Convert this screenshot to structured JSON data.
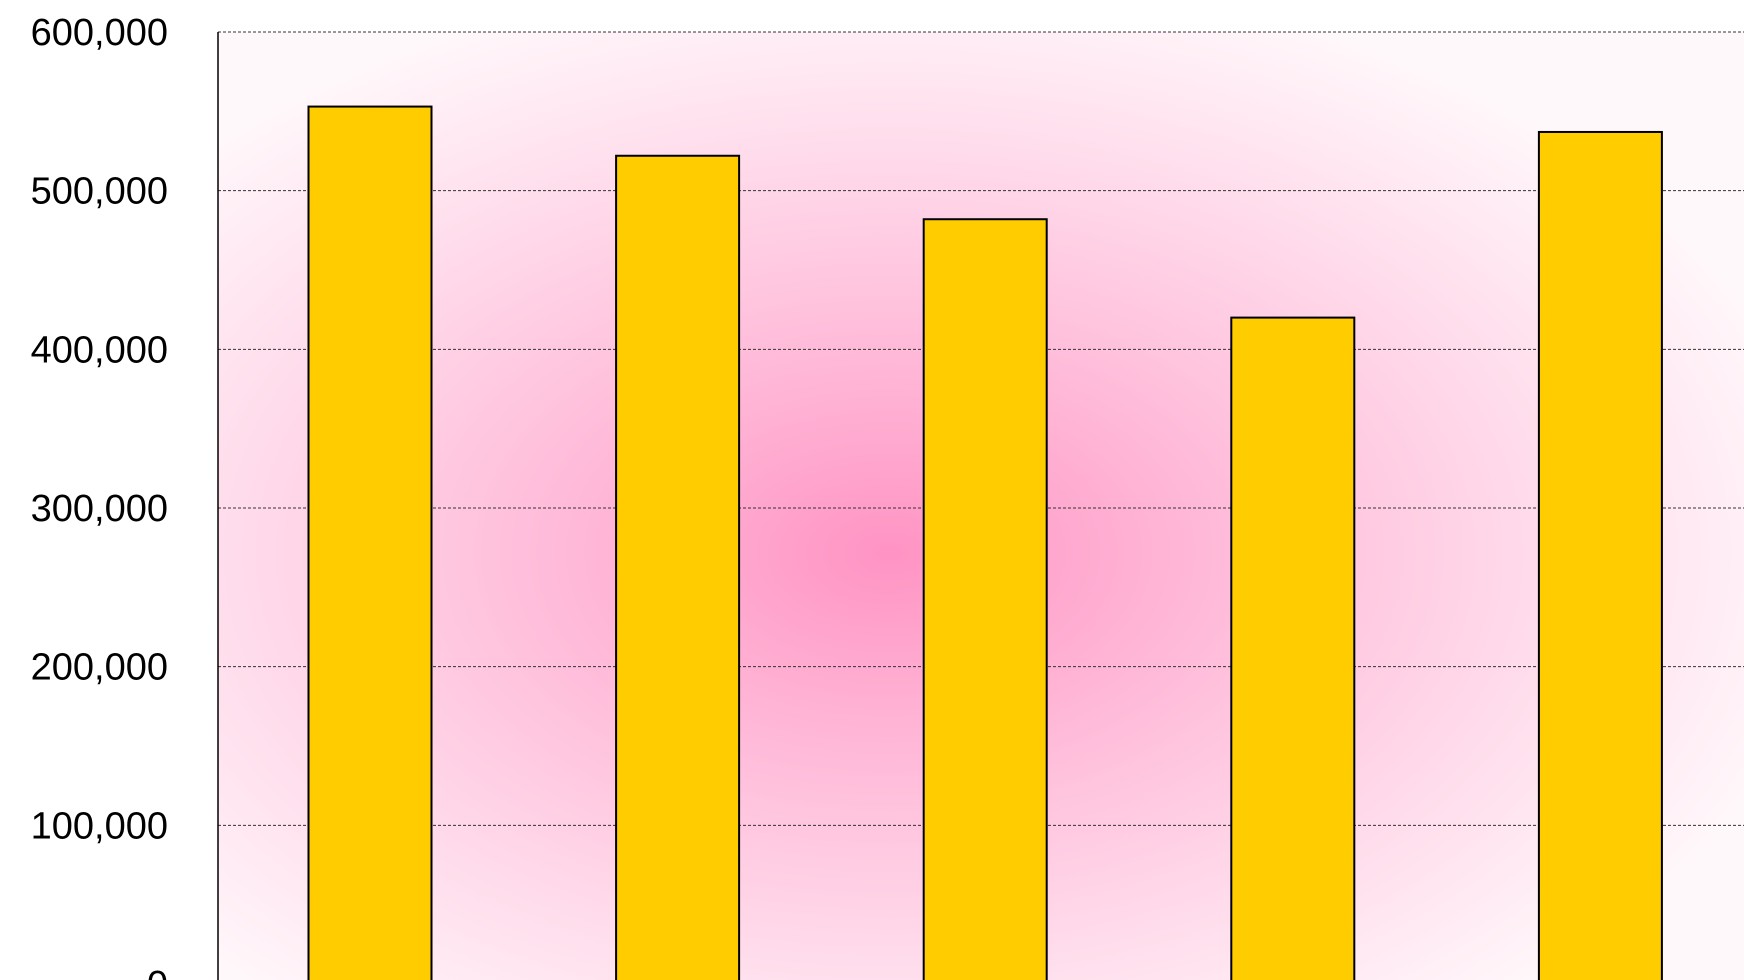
{
  "chart_data": {
    "type": "bar",
    "categories": [
      "",
      "",
      "",
      "",
      ""
    ],
    "values": [
      553000,
      522000,
      482000,
      420000,
      537000
    ],
    "title": "",
    "xlabel": "",
    "ylabel": "",
    "ylim": [
      0,
      600000
    ],
    "y_ticks": [
      {
        "value": 0,
        "label": "0"
      },
      {
        "value": 100000,
        "label": "100,000"
      },
      {
        "value": 200000,
        "label": "200,000"
      },
      {
        "value": 300000,
        "label": "300,000"
      },
      {
        "value": 400000,
        "label": "400,000"
      },
      {
        "value": 500000,
        "label": "500,000"
      },
      {
        "value": 600000,
        "label": "600,000"
      }
    ],
    "grid": "horizontal dashed",
    "legend": "none",
    "colors": {
      "bar_fill": "#FFCC00",
      "bar_stroke": "#000000",
      "background_glow": "#FF99C8"
    }
  }
}
